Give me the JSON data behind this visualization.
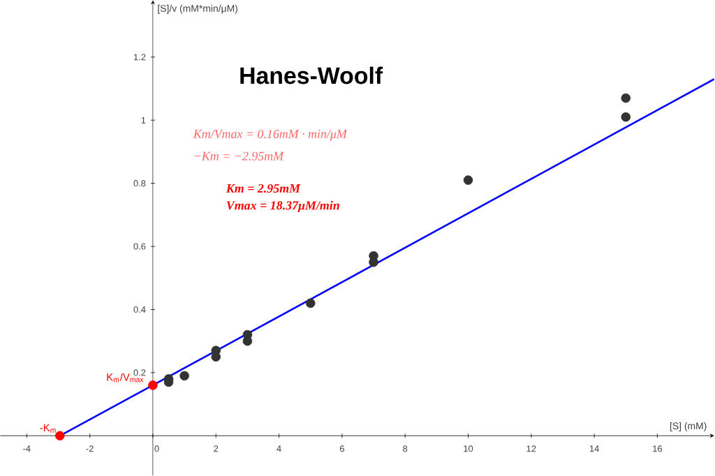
{
  "chart_data": {
    "type": "scatter",
    "title": "Hanes-Woolf",
    "xlabel": "[S] (mM)",
    "ylabel": "[S]/v (mM*min/μM)",
    "xlim": [
      -4.84,
      17.8
    ],
    "ylim": [
      -0.126,
      1.38
    ],
    "xticks": [
      -4,
      -2,
      0,
      2,
      4,
      6,
      8,
      10,
      12,
      14,
      16
    ],
    "yticks": [
      0.2,
      0.4,
      0.6,
      0.8,
      1,
      1.2
    ],
    "series": [
      {
        "type": "line",
        "color": "#0000ff",
        "marker": "none",
        "x": [
          -2.95,
          0,
          17.8
        ],
        "values": [
          0,
          0.16,
          1.13
        ]
      },
      {
        "marker": "circle",
        "color": "#333333",
        "x": [
          0.5,
          0.5,
          1,
          2,
          2,
          3,
          3,
          5,
          7,
          7,
          10,
          15,
          15
        ],
        "values": [
          0.18,
          0.17,
          0.19,
          0.27,
          0.25,
          0.32,
          0.3,
          0.42,
          0.57,
          0.55,
          0.81,
          1.07,
          1.01
        ]
      },
      {
        "marker": "circle",
        "color": "#ff0000",
        "x": [
          -2.95,
          0
        ],
        "values": [
          0,
          0.16
        ]
      }
    ],
    "annotations": [
      "Km/Vmax = 0.16mM · min/μM",
      "−Km = −2.95mM",
      "Km = 2.95mM",
      "Vmax = 18.37μM/min",
      {
        "text": "K$_{m}$/V$_{max}$",
        "x": 0,
        "y": 0.16
      },
      {
        "text": "-K$_{m}$",
        "x": -2.95,
        "y": 0
      }
    ]
  }
}
